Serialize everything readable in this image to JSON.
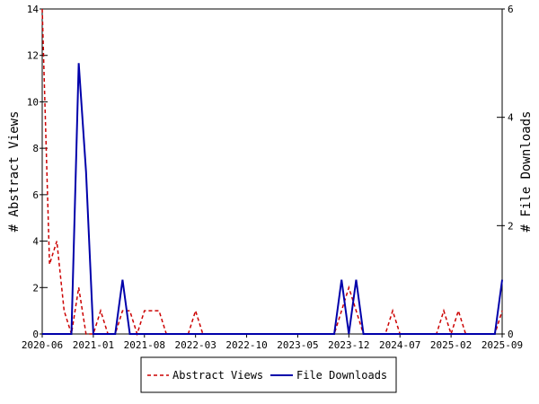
{
  "chart_data": {
    "type": "line",
    "x": [
      "2020-06",
      "2020-07",
      "2020-08",
      "2020-09",
      "2020-10",
      "2020-11",
      "2020-12",
      "2021-01",
      "2021-02",
      "2021-03",
      "2021-04",
      "2021-05",
      "2021-06",
      "2021-07",
      "2021-08",
      "2021-09",
      "2021-10",
      "2021-11",
      "2021-12",
      "2022-01",
      "2022-02",
      "2022-03",
      "2022-04",
      "2022-05",
      "2022-06",
      "2022-07",
      "2022-08",
      "2022-09",
      "2022-10",
      "2022-11",
      "2022-12",
      "2023-01",
      "2023-02",
      "2023-03",
      "2023-04",
      "2023-05",
      "2023-06",
      "2023-07",
      "2023-08",
      "2023-09",
      "2023-10",
      "2023-11",
      "2023-12",
      "2024-01",
      "2024-02",
      "2024-03",
      "2024-04",
      "2024-05",
      "2024-06",
      "2024-07",
      "2024-08",
      "2024-09",
      "2024-10",
      "2024-11",
      "2024-12",
      "2025-01",
      "2025-02",
      "2025-03",
      "2025-04",
      "2025-05",
      "2025-06",
      "2025-07",
      "2025-08",
      "2025-09"
    ],
    "xticks": [
      "2020-06",
      "2021-01",
      "2021-08",
      "2022-03",
      "2022-10",
      "2023-05",
      "2023-12",
      "2024-07",
      "2025-02",
      "2025-09"
    ],
    "series": [
      {
        "name": "Abstract Views",
        "axis": "left",
        "color": "#cc0000",
        "dash": "dashed",
        "values": [
          14,
          3,
          4,
          1,
          0,
          2,
          0,
          0,
          1,
          0,
          0,
          1,
          1,
          0,
          1,
          1,
          1,
          0,
          0,
          0,
          0,
          1,
          0,
          0,
          0,
          0,
          0,
          0,
          0,
          0,
          0,
          0,
          0,
          0,
          0,
          0,
          0,
          0,
          0,
          0,
          0,
          1,
          2,
          1,
          0,
          0,
          0,
          0,
          1,
          0,
          0,
          0,
          0,
          0,
          0,
          1,
          0,
          1,
          0,
          0,
          0,
          0,
          0,
          1
        ]
      },
      {
        "name": "File Downloads",
        "axis": "right",
        "color": "#0000aa",
        "dash": "solid",
        "values": [
          0,
          0,
          0,
          0,
          0,
          5,
          3,
          0,
          0,
          0,
          0,
          1,
          0,
          0,
          0,
          0,
          0,
          0,
          0,
          0,
          0,
          0,
          0,
          0,
          0,
          0,
          0,
          0,
          0,
          0,
          0,
          0,
          0,
          0,
          0,
          0,
          0,
          0,
          0,
          0,
          0,
          1,
          0,
          1,
          0,
          0,
          0,
          0,
          0,
          0,
          0,
          0,
          0,
          0,
          0,
          0,
          0,
          0,
          0,
          0,
          0,
          0,
          0,
          1
        ]
      }
    ],
    "ylabel": "# Abstract Views",
    "y2label": "# File Downloads",
    "ylim": [
      0,
      14
    ],
    "yticks": [
      "0",
      "2",
      "4",
      "6",
      "8",
      "10",
      "12",
      "14"
    ],
    "y2lim": [
      0,
      6
    ],
    "y2ticks": [
      "0",
      "2",
      "4",
      "6"
    ],
    "grid": false,
    "legend_position": "bottom"
  }
}
